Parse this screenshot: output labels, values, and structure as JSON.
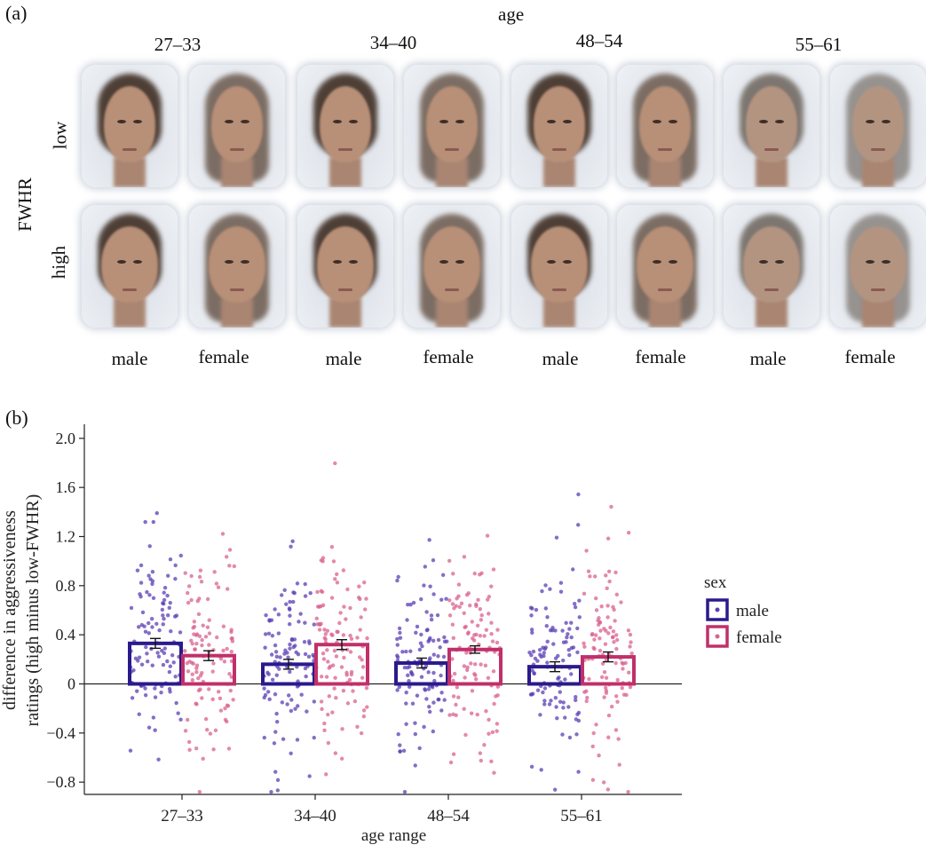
{
  "panel_a": {
    "label": "(a)",
    "age_title": "age",
    "age_groups": [
      "27–33",
      "34–40",
      "48–54",
      "55–61"
    ],
    "fwhr_title": "FWHR",
    "rows": [
      "low",
      "high"
    ],
    "sex_labels": [
      "male",
      "female",
      "male",
      "female",
      "male",
      "female",
      "male",
      "female"
    ]
  },
  "panel_b": {
    "label": "(b)"
  },
  "colors": {
    "male": "#2a1a8c",
    "female": "#c0306a",
    "male_points": "#5b3fb3",
    "female_points": "#d9628f"
  },
  "chart_data": {
    "type": "bar",
    "categories": [
      "27–33",
      "34–40",
      "48–54",
      "55–61"
    ],
    "xlabel": "age range",
    "ylabel": "difference in aggressiveness ratings (high minus low-FWHR)",
    "ylim": [
      -0.9,
      2.1
    ],
    "yticks": [
      "2.0",
      "1.6",
      "1.2",
      "0.8",
      "0.4",
      "0",
      "−0.4",
      "−0.8"
    ],
    "ytick_values": [
      2.0,
      1.6,
      1.2,
      0.8,
      0.4,
      0,
      -0.4,
      -0.8
    ],
    "legend_title": "sex",
    "legend_placement": "right",
    "series": [
      {
        "name": "male",
        "values": [
          0.33,
          0.16,
          0.17,
          0.14
        ],
        "se": [
          0.04,
          0.04,
          0.04,
          0.04
        ]
      },
      {
        "name": "female",
        "values": [
          0.23,
          0.32,
          0.28,
          0.22
        ],
        "se": [
          0.04,
          0.04,
          0.03,
          0.04
        ]
      }
    ]
  }
}
